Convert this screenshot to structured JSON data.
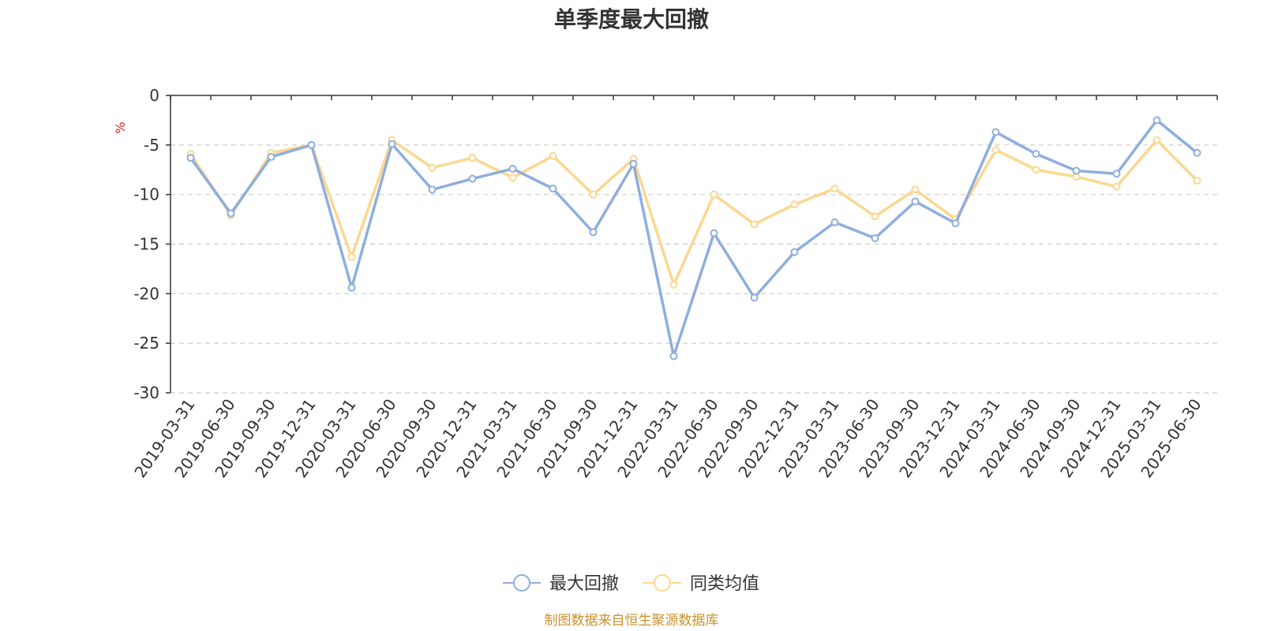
{
  "chart_data": {
    "type": "line",
    "title": "单季度最大回撤",
    "yunit": "%",
    "ylim": [
      -30,
      0
    ],
    "yticks": [
      0,
      -5,
      -10,
      -15,
      -20,
      -25,
      -30
    ],
    "grid": true,
    "legend_position": "bottom",
    "categories": [
      "2019-03-31",
      "2019-06-30",
      "2019-09-30",
      "2019-12-31",
      "2020-03-31",
      "2020-06-30",
      "2020-09-30",
      "2020-12-31",
      "2021-03-31",
      "2021-06-30",
      "2021-09-30",
      "2021-12-31",
      "2022-03-31",
      "2022-06-30",
      "2022-09-30",
      "2022-12-31",
      "2023-03-31",
      "2023-06-30",
      "2023-09-30",
      "2023-12-31",
      "2024-03-31",
      "2024-06-30",
      "2024-09-30",
      "2024-12-31",
      "2025-03-31",
      "2025-06-30"
    ],
    "series": [
      {
        "name": "最大回撤",
        "color": "#8eaedd",
        "values": [
          -6.3,
          -11.9,
          -6.2,
          -5.0,
          -19.4,
          -4.9,
          -9.5,
          -8.4,
          -7.4,
          -9.4,
          -13.8,
          -6.9,
          -26.3,
          -13.9,
          -20.4,
          -15.8,
          -12.8,
          -14.4,
          -10.7,
          -12.9,
          -3.7,
          -5.9,
          -7.6,
          -7.9,
          -2.5,
          -5.8
        ]
      },
      {
        "name": "同类均值",
        "color": "#fbd78f",
        "values": [
          -5.9,
          -12.1,
          -5.8,
          -5.0,
          -16.3,
          -4.5,
          -7.3,
          -6.3,
          -8.3,
          -6.1,
          -10.0,
          -6.4,
          -19.1,
          -10.0,
          -13.0,
          -11.0,
          -9.4,
          -12.2,
          -9.5,
          -12.5,
          -5.5,
          -7.5,
          -8.2,
          -9.2,
          -4.5,
          -8.6
        ]
      }
    ],
    "source": "制图数据来自恒生聚源数据库"
  }
}
